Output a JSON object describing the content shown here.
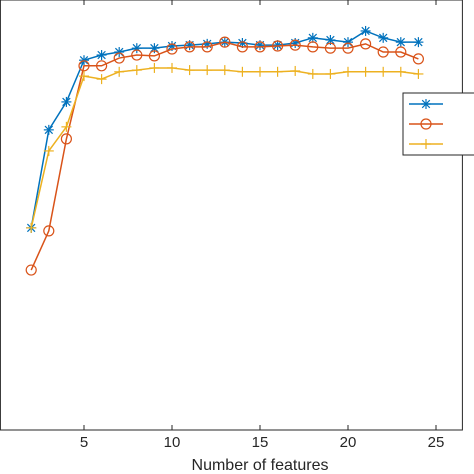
{
  "chart_data": {
    "type": "line",
    "xlabel": "Number of features",
    "xlim": [
      0.25,
      26.5
    ],
    "xticks": [
      5,
      10,
      15,
      20,
      25
    ],
    "ylim": [
      0,
      100
    ],
    "x": [
      2,
      3,
      4,
      5,
      6,
      7,
      8,
      9,
      10,
      11,
      12,
      13,
      14,
      15,
      16,
      17,
      18,
      19,
      20,
      21,
      22,
      23,
      24
    ],
    "legend": "east",
    "series": [
      {
        "color": "#0072BD",
        "marker": "star",
        "values": [
          47.0,
          69.8,
          76.3,
          86.0,
          87.2,
          87.9,
          88.8,
          88.8,
          89.3,
          89.5,
          89.8,
          90.2,
          90.0,
          89.5,
          89.5,
          90.0,
          91.2,
          90.7,
          90.2,
          92.8,
          91.2,
          90.2,
          90.2
        ]
      },
      {
        "color": "#D95319",
        "marker": "circle",
        "values": [
          37.2,
          46.3,
          67.7,
          84.7,
          84.7,
          86.5,
          87.2,
          87.0,
          88.6,
          89.1,
          89.1,
          90.2,
          89.1,
          89.1,
          89.3,
          89.5,
          89.1,
          88.8,
          88.8,
          89.8,
          87.9,
          87.9,
          86.3
        ]
      },
      {
        "color": "#EDB120",
        "marker": "plus",
        "values": [
          47.0,
          64.9,
          70.5,
          82.3,
          81.6,
          83.3,
          83.7,
          84.2,
          84.2,
          83.7,
          83.7,
          83.7,
          83.3,
          83.3,
          83.3,
          83.5,
          82.8,
          82.8,
          83.3,
          83.3,
          83.3,
          83.3,
          82.8
        ]
      }
    ]
  }
}
